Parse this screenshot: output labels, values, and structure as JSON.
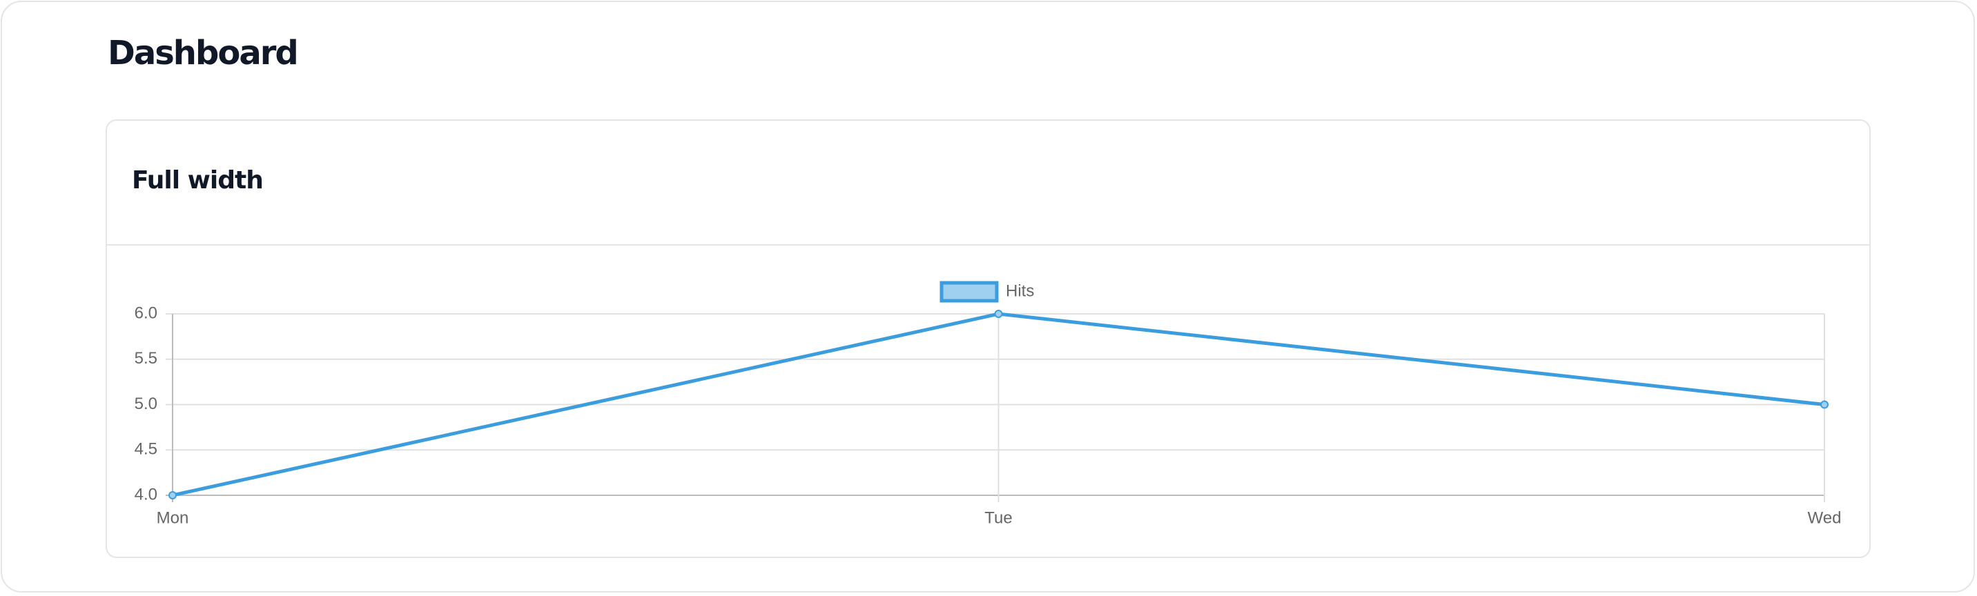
{
  "header": {
    "title": "Dashboard"
  },
  "chart_data": {
    "type": "line",
    "title": "Full width",
    "categories": [
      "Mon",
      "Tue",
      "Wed"
    ],
    "series": [
      {
        "name": "Hits",
        "color": "#3b9ddd",
        "values": [
          4,
          6,
          5
        ]
      }
    ],
    "ylim": [
      4,
      6
    ],
    "yticks": [
      {
        "value": 4,
        "label": "4.0"
      },
      {
        "value": 4.5,
        "label": "4.5"
      },
      {
        "value": 5,
        "label": "5.0"
      },
      {
        "value": 5.5,
        "label": "5.5"
      },
      {
        "value": 6,
        "label": "6.0"
      }
    ],
    "grid": true,
    "legend": "top"
  }
}
